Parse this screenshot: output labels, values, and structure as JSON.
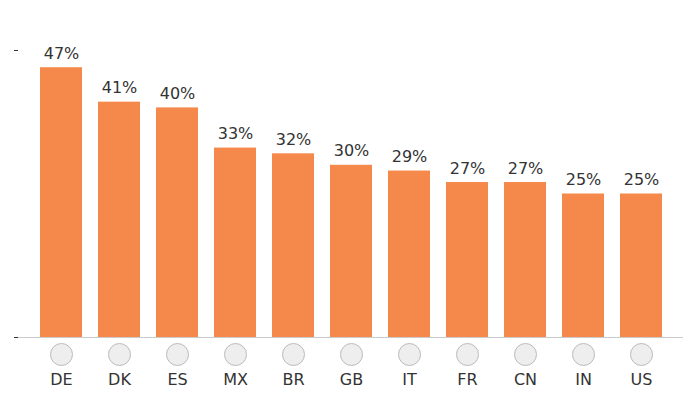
{
  "chart_data": {
    "type": "bar",
    "categories": [
      "DE",
      "DK",
      "ES",
      "MX",
      "BR",
      "GB",
      "IT",
      "FR",
      "CN",
      "IN",
      "US"
    ],
    "values": [
      47,
      41,
      40,
      33,
      32,
      30,
      29,
      27,
      27,
      25,
      25
    ],
    "value_labels": [
      "47%",
      "41%",
      "40%",
      "33%",
      "32%",
      "30%",
      "29%",
      "27%",
      "27%",
      "25%",
      "25%"
    ],
    "color": "#f4894b",
    "ylim": [
      0,
      50
    ],
    "yticks": [
      0,
      50
    ],
    "grid": false,
    "data_labels": true,
    "tick_labels": "x"
  }
}
